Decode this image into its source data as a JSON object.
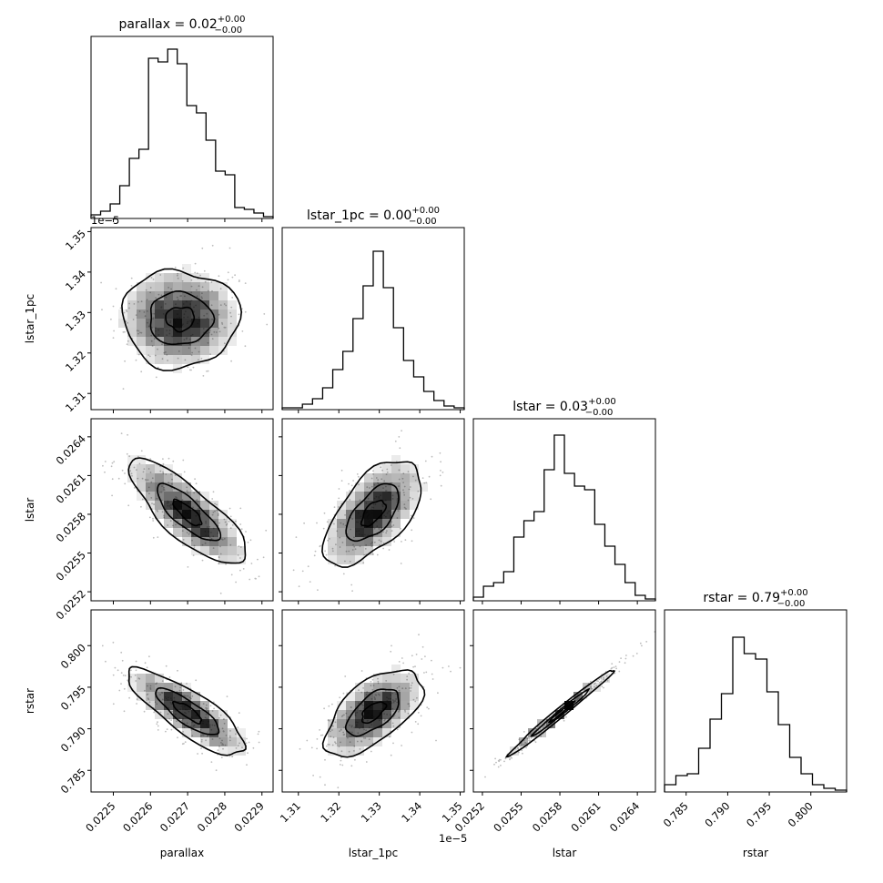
{
  "figure": {
    "type": "corner-plot"
  },
  "chart_data": {
    "type": "corner",
    "parameters": [
      {
        "name": "parallax",
        "axis_label": "parallax",
        "title_prefix": "parallax = 0.02",
        "title_sup": "+0.00",
        "title_sub": "−0.00",
        "range": [
          0.02244,
          0.02293
        ],
        "ticks": [
          0.0225,
          0.0226,
          0.0227,
          0.0228,
          0.0229
        ],
        "tick_labels": [
          "0.0225",
          "0.0226",
          "0.0227",
          "0.0228",
          "0.0229"
        ],
        "exponent_label": "",
        "histogram": [
          0.02,
          0.04,
          0.08,
          0.18,
          0.33,
          0.38,
          0.88,
          0.86,
          0.93,
          0.85,
          0.62,
          0.58,
          0.43,
          0.26,
          0.24,
          0.06,
          0.05,
          0.03,
          0.01
        ]
      },
      {
        "name": "lstar_1pc",
        "axis_label": "lstar_1pc",
        "title_prefix": "lstar_1pc = 0.00",
        "title_sup": "+0.00",
        "title_sub": "−0.00",
        "range": [
          1.306,
          1.351
        ],
        "ticks": [
          1.31,
          1.32,
          1.33,
          1.34,
          1.35
        ],
        "tick_labels": [
          "1.31",
          "1.32",
          "1.33",
          "1.34",
          "1.35"
        ],
        "exponent_label": "1e−5",
        "histogram": [
          0.01,
          0.01,
          0.03,
          0.06,
          0.12,
          0.22,
          0.32,
          0.5,
          0.68,
          0.87,
          0.67,
          0.45,
          0.27,
          0.18,
          0.1,
          0.05,
          0.02,
          0.01
        ]
      },
      {
        "name": "lstar",
        "axis_label": "lstar",
        "title_prefix": "lstar = 0.03",
        "title_sup": "+0.00",
        "title_sub": "−0.00",
        "range": [
          0.02513,
          0.02654
        ],
        "ticks": [
          0.0252,
          0.0255,
          0.0258,
          0.0261,
          0.0264
        ],
        "tick_labels": [
          "0.0252",
          "0.0255",
          "0.0258",
          "0.0261",
          "0.0264"
        ],
        "exponent_label": "",
        "histogram": [
          0.02,
          0.08,
          0.1,
          0.16,
          0.35,
          0.44,
          0.49,
          0.72,
          0.91,
          0.7,
          0.63,
          0.61,
          0.42,
          0.3,
          0.2,
          0.1,
          0.03,
          0.01
        ]
      },
      {
        "name": "rstar",
        "axis_label": "rstar",
        "title_prefix": "rstar = 0.79",
        "title_sup": "+0.00",
        "title_sub": "−0.00",
        "range": [
          0.7824,
          0.8043
        ],
        "ticks": [
          0.785,
          0.79,
          0.795,
          0.8
        ],
        "tick_labels": [
          "0.785",
          "0.790",
          "0.795",
          "0.800"
        ],
        "exponent_label": "",
        "histogram": [
          0.04,
          0.09,
          0.1,
          0.24,
          0.4,
          0.54,
          0.85,
          0.76,
          0.73,
          0.55,
          0.37,
          0.19,
          0.1,
          0.04,
          0.02,
          0.01
        ]
      }
    ],
    "pair_summaries": [
      {
        "x": "parallax",
        "y": "lstar_1pc",
        "mean": [
          0.02268,
          1.3285
        ],
        "sd": [
          8.5e-05,
          0.0065
        ],
        "corr": 0.0
      },
      {
        "x": "parallax",
        "y": "lstar",
        "mean": [
          0.0227,
          0.02581
        ],
        "sd": [
          8.5e-05,
          0.00022
        ],
        "corr": -0.8
      },
      {
        "x": "lstar_1pc",
        "y": "lstar",
        "mean": [
          1.3285,
          0.02581
        ],
        "sd": [
          0.0065,
          0.00022
        ],
        "corr": 0.6
      },
      {
        "x": "parallax",
        "y": "rstar",
        "mean": [
          0.0227,
          0.792
        ],
        "sd": [
          8.5e-05,
          0.0028
        ],
        "corr": -0.82
      },
      {
        "x": "lstar_1pc",
        "y": "rstar",
        "mean": [
          1.3285,
          0.792
        ],
        "sd": [
          0.0065,
          0.0028
        ],
        "corr": 0.6
      },
      {
        "x": "lstar",
        "y": "rstar",
        "mean": [
          0.02581,
          0.792
        ],
        "sd": [
          0.00022,
          0.0028
        ],
        "corr": 0.99
      }
    ],
    "contour_levels": [
      "1-sigma",
      "2-sigma"
    ],
    "colors": {
      "ink": "#000000",
      "sample_points": "#bdbdbd",
      "density": "#000000"
    }
  }
}
